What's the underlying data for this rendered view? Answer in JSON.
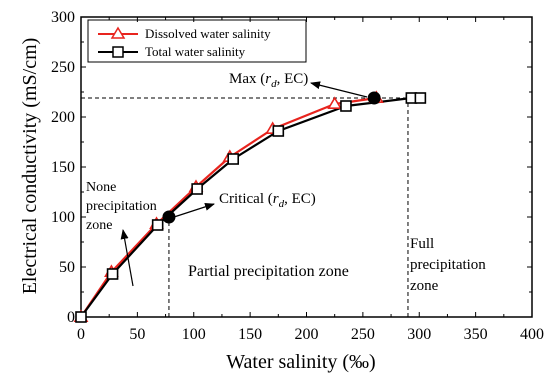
{
  "chart_data": {
    "type": "line",
    "xlabel": "Water salinity (‰)",
    "ylabel": "Electrical conductivity (mS/cm)",
    "xlim": [
      0,
      400
    ],
    "ylim": [
      0,
      300
    ],
    "xticks": [
      0,
      50,
      100,
      150,
      200,
      250,
      300,
      350,
      400
    ],
    "yticks": [
      0,
      50,
      100,
      150,
      200,
      250,
      300
    ],
    "grid": false,
    "legend_position": "top-left",
    "series": [
      {
        "name": "Dissolved water salinity",
        "color": "#e8241e",
        "marker": "triangle",
        "x": [
          0,
          27,
          67,
          102,
          132,
          170,
          225,
          262
        ],
        "y": [
          0,
          45,
          93,
          130,
          160,
          188,
          213,
          219
        ]
      },
      {
        "name": "Total water salinity",
        "color": "#000000",
        "marker": "square",
        "x": [
          0,
          28,
          68,
          103,
          135,
          175,
          235,
          293,
          301
        ],
        "y": [
          0,
          43,
          92,
          128,
          158,
          186,
          211,
          219,
          219
        ]
      }
    ],
    "key_points": [
      {
        "name": "critical",
        "x": 78,
        "y": 100,
        "color": "#000000"
      },
      {
        "name": "max",
        "x": 260,
        "y": 219,
        "color": "#000000"
      }
    ],
    "reference_lines": [
      {
        "type": "horizontal",
        "y": 219,
        "x_from": 0,
        "x_to": 290
      },
      {
        "type": "vertical",
        "x": 78,
        "y_from": 0,
        "y_to": 100
      },
      {
        "type": "vertical",
        "x": 290,
        "y_from": 0,
        "y_to": 219
      }
    ],
    "annotations": {
      "max": {
        "prefix": "Max (",
        "italic": "r",
        "subscript": "d",
        "suffix": ", EC)"
      },
      "critical": {
        "prefix": "Critical (",
        "italic": "r",
        "subscript": "d",
        "suffix": ", EC)"
      },
      "none_zone": [
        "None",
        "precipitation",
        "zone"
      ],
      "partial_zone": "Partial precipitation zone",
      "full_zone": [
        "Full",
        "precipitation",
        "zone"
      ]
    }
  }
}
